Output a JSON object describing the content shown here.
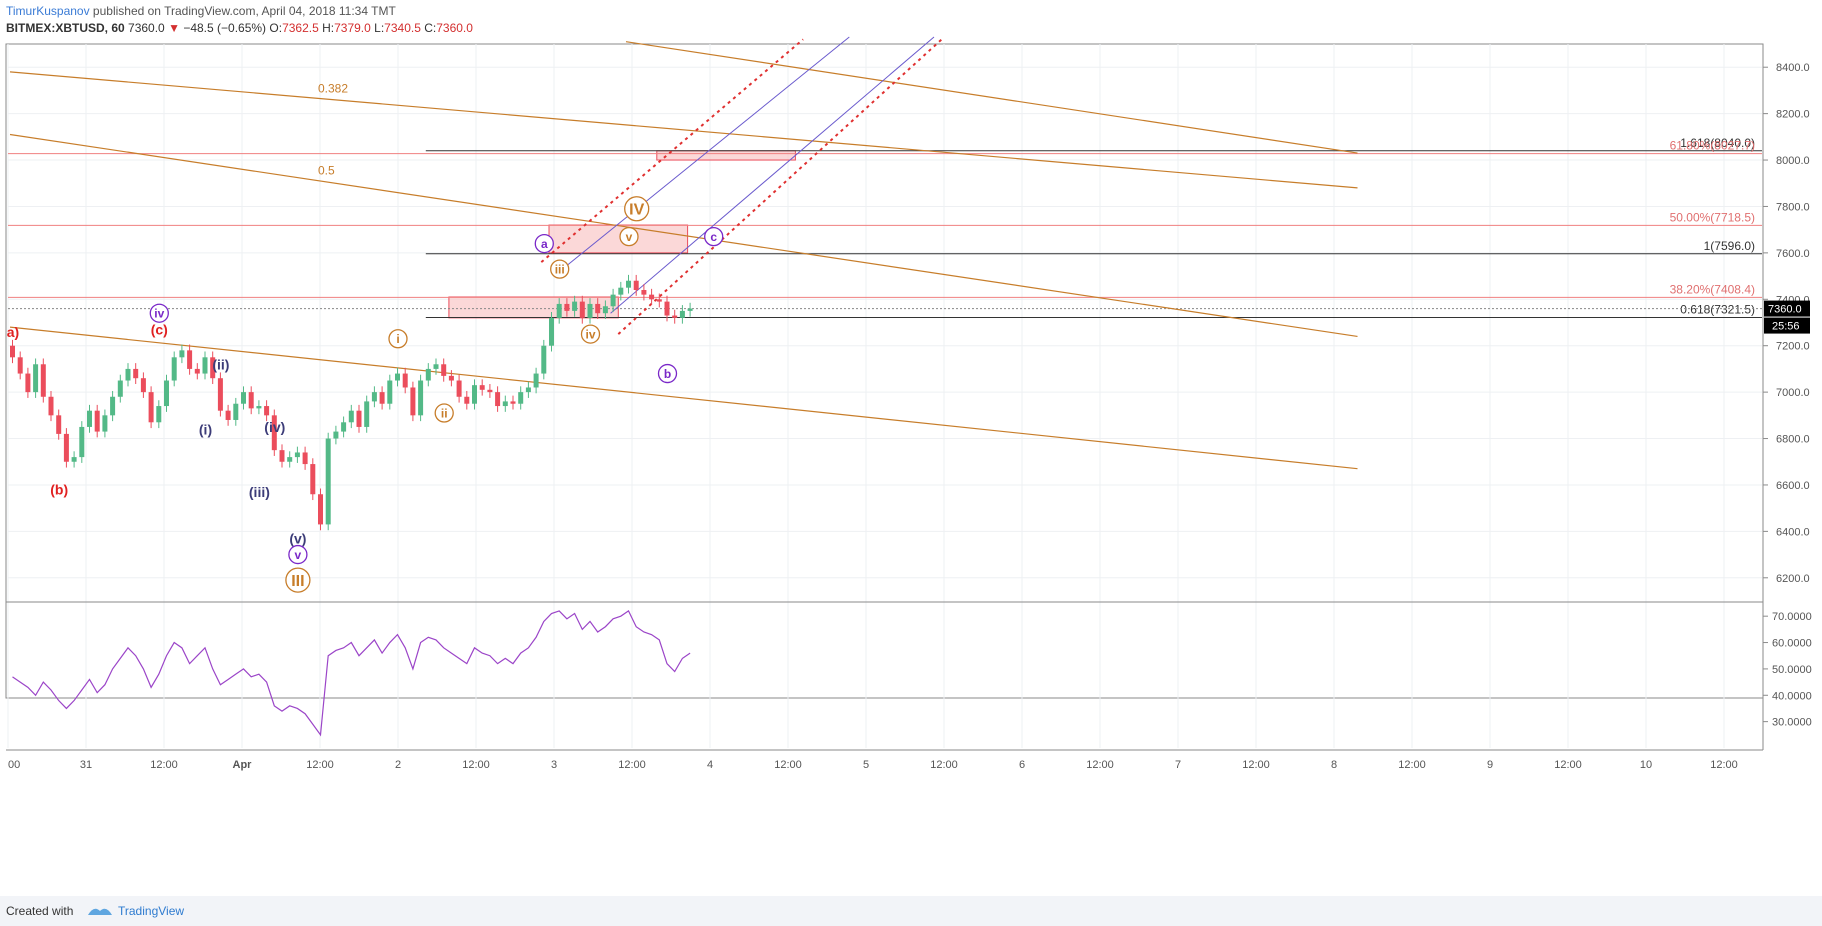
{
  "header": {
    "author": "TimurKuspanov",
    "published": " published on TradingView.com, April 04, 2018 11:34 TMT",
    "symbol": "BITMEX:XBTUSD, 60",
    "change": "−48.5 (−0.65%)",
    "o_label": "O:",
    "o_val": "7362.5",
    "h_label": "H:",
    "h_val": "7379.0",
    "l_label": "L:",
    "l_val": "7340.5",
    "c_label": "C:",
    "c_val": "7360.0"
  },
  "footer": {
    "created": "Created with",
    "brand": "TradingView"
  },
  "colors": {
    "up": "#53b987",
    "down": "#eb4d5c",
    "trend": "#c77d2a",
    "channel": "#6a5acd",
    "fib": "#f08080",
    "zone": "#f9c8c8",
    "rsi": "#9b45c8"
  },
  "chart_data": {
    "type": "candlestick",
    "price_axis": {
      "ylim": [
        6100,
        8500
      ],
      "ticks": [
        "8400.0",
        "8200.0",
        "8000.0",
        "7800.0",
        "7600.0",
        "7400.0",
        "7200.0",
        "7000.0",
        "6800.0",
        "6600.0",
        "6400.0",
        "6200.0"
      ]
    },
    "rsi_axis": {
      "ylim": [
        20,
        75
      ],
      "ticks": [
        "70.0000",
        "60.0000",
        "50.0000",
        "40.0000",
        "30.0000"
      ]
    },
    "time_ticks": [
      "00",
      "31",
      "12:00",
      "Apr",
      "12:00",
      "2",
      "12:00",
      "3",
      "12:00",
      "4",
      "12:00",
      "5",
      "12:00",
      "6",
      "12:00",
      "7",
      "12:00",
      "8",
      "12:00",
      "9",
      "12:00",
      "10",
      "12:00"
    ],
    "last_price": "7360.0",
    "countdown": "25:56",
    "closes": [
      7150,
      7080,
      7000,
      7120,
      6980,
      6900,
      6820,
      6700,
      6720,
      6850,
      6920,
      6830,
      6900,
      6980,
      7050,
      7100,
      7060,
      7000,
      6870,
      6940,
      7050,
      7150,
      7180,
      7100,
      7080,
      7150,
      7060,
      6920,
      6880,
      6950,
      7000,
      6930,
      6940,
      6900,
      6750,
      6700,
      6720,
      6740,
      6690,
      6560,
      6430,
      6800,
      6830,
      6870,
      6920,
      6850,
      6960,
      7000,
      6950,
      7050,
      7080,
      7020,
      6900,
      7050,
      7100,
      7120,
      7070,
      7050,
      6980,
      6950,
      7030,
      7010,
      7000,
      6940,
      6960,
      6950,
      7000,
      7020,
      7080,
      7200,
      7320,
      7380,
      7350,
      7390,
      7320,
      7380,
      7340,
      7370,
      7420,
      7450,
      7480,
      7440,
      7420,
      7400,
      7390,
      7330,
      7320,
      7350,
      7360
    ],
    "rsi": [
      47,
      45,
      43,
      40,
      45,
      42,
      38,
      35,
      38,
      42,
      46,
      41,
      44,
      50,
      54,
      58,
      55,
      50,
      43,
      48,
      55,
      60,
      58,
      52,
      55,
      58,
      50,
      44,
      46,
      48,
      50,
      47,
      48,
      45,
      36,
      34,
      36,
      35,
      33,
      29,
      25,
      55,
      57,
      58,
      60,
      55,
      58,
      61,
      56,
      60,
      63,
      58,
      50,
      60,
      62,
      61,
      58,
      56,
      54,
      52,
      58,
      56,
      55,
      52,
      54,
      52,
      56,
      58,
      62,
      68,
      71,
      72,
      69,
      71,
      65,
      68,
      64,
      66,
      69,
      70,
      72,
      66,
      64,
      63,
      61,
      52,
      49,
      54,
      56
    ],
    "trend_lines": [
      {
        "label": "0.382",
        "p1": [
          0,
          8380
        ],
        "p2": [
          175,
          7880
        ]
      },
      {
        "label": "0.5",
        "p1": [
          0,
          8110
        ],
        "p2": [
          175,
          7240
        ]
      },
      {
        "label": "",
        "p1": [
          0,
          7280
        ],
        "p2": [
          175,
          6670
        ]
      },
      {
        "label": "",
        "p1": [
          80,
          8510
        ],
        "p2": [
          175,
          8030
        ]
      }
    ],
    "h_lines": [
      {
        "label": "1.618(8040.0)",
        "value": 8040.0,
        "color": "#333333"
      },
      {
        "label": "61.80%(8027.7)",
        "value": 8027.7,
        "color": "#f08080"
      },
      {
        "label": "50.00%(7718.5)",
        "value": 7718.5,
        "color": "#f08080"
      },
      {
        "label": "1(7596.0)",
        "value": 7596.0,
        "color": "#333333"
      },
      {
        "label": "38.20%(7408.4)",
        "value": 7408.4,
        "color": "#f08080"
      },
      {
        "label": "0.618(7321.5)",
        "value": 7321.5,
        "color": "#333333"
      }
    ],
    "waves": [
      {
        "text": "a)",
        "style": "red",
        "pos": [
          0,
          7260
        ]
      },
      {
        "text": "(b)",
        "style": "red",
        "pos": [
          6,
          6580
        ]
      },
      {
        "text": "(c)",
        "style": "red",
        "pos": [
          19,
          7270
        ]
      },
      {
        "text": "iv",
        "style": "purple-circle",
        "pos": [
          19,
          7340
        ]
      },
      {
        "text": "(i)",
        "style": "navy",
        "pos": [
          25,
          6840
        ]
      },
      {
        "text": "(ii)",
        "style": "navy",
        "pos": [
          27,
          7120
        ]
      },
      {
        "text": "(iii)",
        "style": "navy",
        "pos": [
          32,
          6570
        ]
      },
      {
        "text": "(iv)",
        "style": "navy",
        "pos": [
          34,
          6850
        ]
      },
      {
        "text": "(v)",
        "style": "navy",
        "pos": [
          37,
          6370
        ]
      },
      {
        "text": "v",
        "style": "purple-circle",
        "pos": [
          37,
          6300
        ]
      },
      {
        "text": "III",
        "style": "orange-circle-big",
        "pos": [
          37,
          6190
        ]
      },
      {
        "text": "i",
        "style": "orange-circle",
        "pos": [
          50,
          7230
        ]
      },
      {
        "text": "ii",
        "style": "orange-circle",
        "pos": [
          56,
          6910
        ]
      },
      {
        "text": "iii",
        "style": "orange-circle",
        "pos": [
          71,
          7530
        ]
      },
      {
        "text": "a",
        "style": "purple-circle",
        "pos": [
          69,
          7640
        ]
      },
      {
        "text": "iv",
        "style": "orange-circle",
        "pos": [
          75,
          7250
        ]
      },
      {
        "text": "v",
        "style": "orange-circle",
        "pos": [
          80,
          7670
        ]
      },
      {
        "text": "IV",
        "style": "orange-circle-big",
        "pos": [
          81,
          7790
        ]
      },
      {
        "text": "c",
        "style": "purple-circle",
        "pos": [
          91,
          7670
        ]
      },
      {
        "text": "b",
        "style": "purple-circle",
        "pos": [
          85,
          7080
        ]
      }
    ],
    "zones": [
      {
        "x1": 57,
        "x2": 79,
        "y1": 7410,
        "y2": 7320
      },
      {
        "x1": 70,
        "x2": 88,
        "y1": 7720,
        "y2": 7600
      },
      {
        "x1": 84,
        "x2": 102,
        "y1": 8040,
        "y2": 8000
      }
    ]
  }
}
